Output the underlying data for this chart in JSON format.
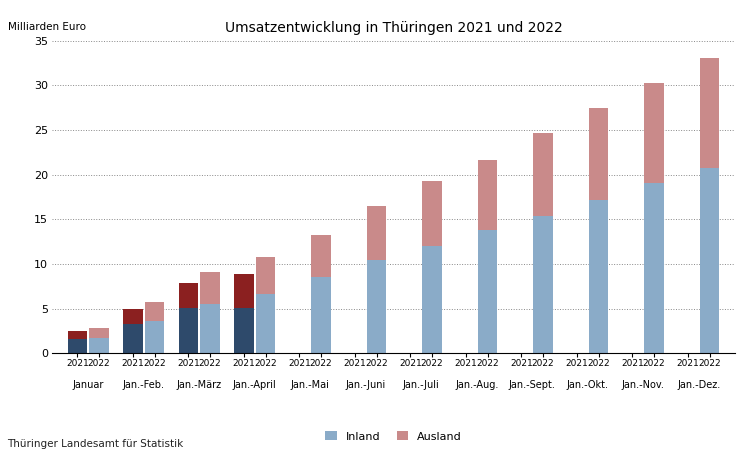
{
  "title": "Umsatzentwicklung in Thüringen 2021 und 2022",
  "ylabel": "Milliarden Euro",
  "footer": "Thüringer Landesamt für Statistik",
  "ylim": [
    0,
    35
  ],
  "yticks": [
    0,
    5,
    10,
    15,
    20,
    25,
    30,
    35
  ],
  "months": [
    "Januar",
    "Jan.-Feb.",
    "Jan.-März",
    "Jan.-April",
    "Jan.-Mai",
    "Jan.-Juni",
    "Jan.-Juli",
    "Jan.-Aug.",
    "Jan.-Sept.",
    "Jan.-Okt.",
    "Jan.-Nov.",
    "Jan.-Dez."
  ],
  "data_2021_inland": [
    1.55,
    3.3,
    5.05,
    5.05,
    0.0,
    0.0,
    0.0,
    0.0,
    0.0,
    0.0,
    0.0,
    0.0
  ],
  "data_2021_ausland": [
    0.9,
    1.65,
    2.85,
    3.85,
    0.0,
    0.0,
    0.0,
    0.0,
    0.0,
    0.0,
    0.0,
    0.0
  ],
  "data_2022_inland": [
    1.7,
    3.6,
    5.5,
    6.7,
    8.6,
    10.4,
    12.0,
    13.8,
    15.4,
    17.2,
    19.1,
    20.7
  ],
  "data_2022_ausland": [
    1.1,
    2.2,
    3.6,
    4.1,
    4.7,
    6.1,
    7.3,
    7.9,
    9.3,
    10.3,
    11.2,
    12.4
  ],
  "color_2021_inland": "#2e4a6b",
  "color_2021_ausland": "#8b2020",
  "color_2022_inland": "#8aabc8",
  "color_2022_ausland": "#c98a8a",
  "bar_width": 0.35,
  "bar_gap": 0.04,
  "xlim_left": -0.65,
  "xlim_right": 11.65
}
